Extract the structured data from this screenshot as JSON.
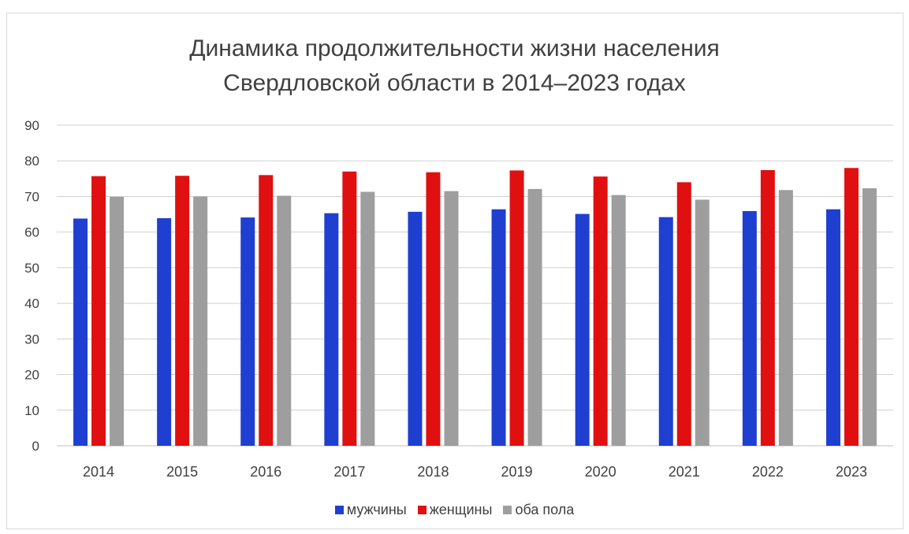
{
  "chart_data": {
    "type": "bar",
    "title_line1": "Динамика продолжительности жизни населения",
    "title_line2": "Свердловской области в 2014–2023 годах",
    "categories": [
      "2014",
      "2015",
      "2016",
      "2017",
      "2018",
      "2019",
      "2020",
      "2021",
      "2022",
      "2023"
    ],
    "series": [
      {
        "name": "мужчины",
        "color": "#1f3fd0",
        "values": [
          63.8,
          63.9,
          64.1,
          65.3,
          65.7,
          66.4,
          65.1,
          64.2,
          65.9,
          66.4
        ]
      },
      {
        "name": "женщины",
        "color": "#e01010",
        "values": [
          75.7,
          75.8,
          76.0,
          77.0,
          76.8,
          77.3,
          75.6,
          74.0,
          77.4,
          78.0
        ]
      },
      {
        "name": "оба пола",
        "color": "#9e9e9e",
        "values": [
          69.9,
          70.0,
          70.2,
          71.3,
          71.5,
          72.1,
          70.4,
          69.1,
          71.8,
          72.3
        ]
      }
    ],
    "y_ticks": [
      "0",
      "10",
      "20",
      "30",
      "40",
      "50",
      "60",
      "70",
      "80",
      "90"
    ],
    "ylim": [
      0,
      90
    ],
    "grid": true,
    "legend_position": "bottom"
  }
}
